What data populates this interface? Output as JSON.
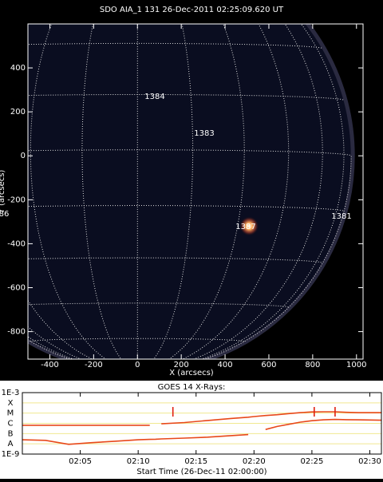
{
  "chart_data": [
    {
      "type": "image",
      "title": "SDO AIA_1 131 26-Dec-2011 02:25:09.620 UT",
      "x_label": "X (arcsecs)",
      "y_label": "Y (arcsecs)",
      "xlim": [
        -500,
        1030
      ],
      "ylim": [
        -925,
        600
      ],
      "xticks": [
        -400,
        -200,
        0,
        200,
        400,
        600,
        800,
        1000
      ],
      "yticks": [
        -800,
        -600,
        -400,
        -200,
        0,
        200,
        400
      ],
      "annotations": [
        "1384",
        "1383",
        "1387",
        "1381",
        "86"
      ]
    },
    {
      "type": "line",
      "title": "GOES 14 X-Rays:",
      "x_label": "Start Time (26-Dec-11 02:00:00)",
      "log_scale": true,
      "grid": true,
      "xlim": [
        0,
        31
      ],
      "ylim": [
        1e-09,
        0.001
      ],
      "xticks": [
        {
          "value": 5,
          "label": "02:05"
        },
        {
          "value": 10,
          "label": "02:10"
        },
        {
          "value": 15,
          "label": "02:15"
        },
        {
          "value": 20,
          "label": "02:20"
        },
        {
          "value": 25,
          "label": "02:25"
        },
        {
          "value": 30,
          "label": "02:30"
        }
      ],
      "yticks": [
        {
          "value": 1e-09,
          "label": "1E-9"
        },
        {
          "value": 1e-08,
          "label": "A"
        },
        {
          "value": 1e-07,
          "label": "B"
        },
        {
          "value": 1e-06,
          "label": "C"
        },
        {
          "value": 1e-05,
          "label": "M"
        },
        {
          "value": 0.0001,
          "label": "X"
        },
        {
          "value": 0.001,
          "label": "1E-3"
        }
      ],
      "x": [
        0,
        2,
        4,
        6,
        8,
        10,
        11,
        11.5,
        12,
        14,
        16,
        18,
        19.5,
        20,
        21,
        22,
        23,
        24,
        25,
        26,
        27,
        28,
        29,
        31
      ],
      "series": [
        {
          "color": "#e8481a",
          "values": [
            6.5e-07,
            6.5e-07,
            6.5e-07,
            6.5e-07,
            6.5e-07,
            6.5e-07,
            6.5e-07,
            null,
            9e-07,
            1.2e-06,
            1.9e-06,
            3e-06,
            4e-06,
            4.6e-06,
            5.8e-06,
            7e-06,
            9e-06,
            1.1e-05,
            1.3e-05,
            1.35e-05,
            1.35e-05,
            1.2e-05,
            1.1e-05,
            1.1e-05
          ]
        },
        {
          "color": "#e8481a",
          "values": [
            2.5e-08,
            2.2e-08,
            9e-09,
            1.3e-08,
            1.8e-08,
            2.5e-08,
            2.7e-08,
            2.8e-08,
            3e-08,
            3.6e-08,
            4.5e-08,
            6.3e-08,
            8e-08,
            null,
            2.5e-07,
            5e-07,
            8e-07,
            1.3e-06,
            1.8e-06,
            2.2e-06,
            2.4e-06,
            2.3e-06,
            2.2e-06,
            2e-06
          ]
        }
      ],
      "event_markers": [
        13,
        25.2,
        27
      ],
      "marker_color": "#e02010"
    }
  ]
}
